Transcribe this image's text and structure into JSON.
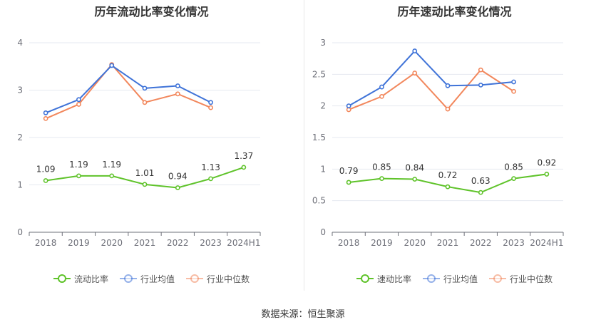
{
  "source_label": "数据来源：恒生聚源",
  "colors": {
    "company": "#5fc32a",
    "industry_avg": "#3f73d8",
    "industry_median": "#f2875c",
    "grid": "#e6e9f0",
    "axis": "#6e7079",
    "label": "#333333"
  },
  "chart_data": [
    {
      "type": "line",
      "title": "历年流动比率变化情况",
      "categories": [
        "2018",
        "2019",
        "2020",
        "2021",
        "2022",
        "2023",
        "2024H1"
      ],
      "ylim": [
        0,
        4
      ],
      "yticks": [
        0,
        1,
        2,
        3,
        4
      ],
      "ytick_labels": [
        "0",
        "1",
        "2",
        "3",
        "4"
      ],
      "grid": true,
      "legend_position": "bottom",
      "series": [
        {
          "name": "流动比率",
          "key": "company",
          "values": [
            1.09,
            1.19,
            1.19,
            1.01,
            0.94,
            1.13,
            1.37
          ],
          "labels": [
            "1.09",
            "1.19",
            "1.19",
            "1.01",
            "0.94",
            "1.13",
            "1.37"
          ]
        },
        {
          "name": "行业均值",
          "key": "industry_avg",
          "values": [
            2.52,
            2.8,
            3.52,
            3.04,
            3.09,
            2.74,
            null
          ]
        },
        {
          "name": "行业中位数",
          "key": "industry_median",
          "values": [
            2.4,
            2.7,
            3.54,
            2.74,
            2.92,
            2.63,
            null
          ]
        }
      ]
    },
    {
      "type": "line",
      "title": "历年速动比率变化情况",
      "categories": [
        "2018",
        "2019",
        "2020",
        "2021",
        "2022",
        "2023",
        "2024H1"
      ],
      "ylim": [
        0,
        3
      ],
      "yticks": [
        0,
        0.5,
        1,
        1.5,
        2,
        2.5,
        3
      ],
      "ytick_labels": [
        "0",
        "0.5",
        "1",
        "1.5",
        "2",
        "2.5",
        "3"
      ],
      "grid": true,
      "legend_position": "bottom",
      "series": [
        {
          "name": "速动比率",
          "key": "company",
          "values": [
            0.79,
            0.85,
            0.84,
            0.72,
            0.63,
            0.85,
            0.92
          ],
          "labels": [
            "0.79",
            "0.85",
            "0.84",
            "0.72",
            "0.63",
            "0.85",
            "0.92"
          ]
        },
        {
          "name": "行业均值",
          "key": "industry_avg",
          "values": [
            2.0,
            2.3,
            2.87,
            2.32,
            2.33,
            2.38,
            null
          ]
        },
        {
          "name": "行业中位数",
          "key": "industry_median",
          "values": [
            1.94,
            2.15,
            2.52,
            1.95,
            2.57,
            2.23,
            null
          ]
        }
      ]
    }
  ]
}
